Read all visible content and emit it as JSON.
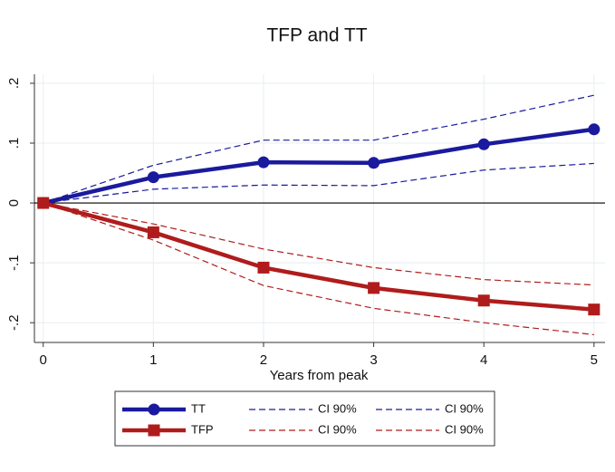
{
  "chart_data": {
    "type": "line",
    "title": "TFP and TT",
    "xlabel": "Years from peak",
    "x": [
      0,
      1,
      2,
      3,
      4,
      5
    ],
    "series": [
      {
        "name": "TT",
        "color": "#1a1a9e",
        "style": "solid",
        "marker": "circle",
        "values": [
          0,
          0.043,
          0.068,
          0.067,
          0.098,
          0.123
        ]
      },
      {
        "name": "CI 90%",
        "color": "#1a1a9e",
        "style": "dashed",
        "marker": "none",
        "values": [
          0,
          0.063,
          0.105,
          0.105,
          0.14,
          0.18
        ]
      },
      {
        "name": "CI 90%",
        "color": "#1a1a9e",
        "style": "dashed",
        "marker": "none",
        "values": [
          0,
          0.023,
          0.03,
          0.029,
          0.055,
          0.066
        ]
      },
      {
        "name": "TFP",
        "color": "#b01c1c",
        "style": "solid",
        "marker": "square",
        "values": [
          0,
          -0.049,
          -0.108,
          -0.142,
          -0.163,
          -0.178
        ]
      },
      {
        "name": "CI 90%",
        "color": "#b01c1c",
        "style": "dashed",
        "marker": "none",
        "values": [
          0,
          -0.035,
          -0.077,
          -0.108,
          -0.128,
          -0.137
        ]
      },
      {
        "name": "CI 90%",
        "color": "#b01c1c",
        "style": "dashed",
        "marker": "none",
        "values": [
          0,
          -0.062,
          -0.138,
          -0.176,
          -0.2,
          -0.22
        ]
      }
    ],
    "xlim": [
      -0.08,
      5.1
    ],
    "xticks": [
      0,
      1,
      2,
      3,
      4,
      5
    ],
    "ylim": [
      -0.233,
      0.215
    ],
    "yticks": [
      {
        "value": -0.2,
        "label": "-.2"
      },
      {
        "value": -0.1,
        "label": "-.1"
      },
      0,
      {
        "value": 0.1,
        "label": ".1"
      },
      {
        "value": 0.2,
        "label": ".2"
      }
    ],
    "yline": 0,
    "grid": true,
    "legend": "bottom"
  }
}
